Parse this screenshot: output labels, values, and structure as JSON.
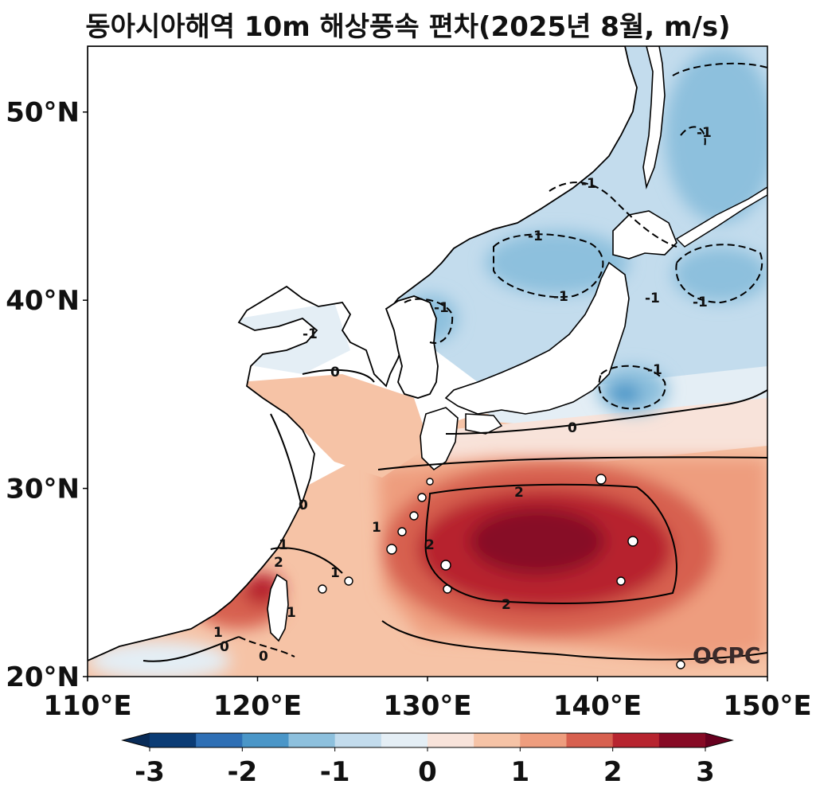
{
  "title": "동아시아해역 10m 해상풍속 편차(2025년 8월, m/s)",
  "watermark": "OCPC",
  "map": {
    "lon_range": [
      110,
      150
    ],
    "lat_range": [
      20,
      53.5
    ],
    "lon_ticks": [
      "110°E",
      "120°E",
      "130°E",
      "140°E",
      "150°E"
    ],
    "lat_ticks": [
      "20°N",
      "30°N",
      "40°N",
      "50°N"
    ],
    "contour_labels": [
      {
        "text": "0"
      },
      {
        "text": "0"
      },
      {
        "text": "0"
      },
      {
        "text": "0"
      },
      {
        "text": "1"
      },
      {
        "text": "1"
      },
      {
        "text": "1"
      },
      {
        "text": "1"
      },
      {
        "text": "2"
      },
      {
        "text": "2"
      },
      {
        "text": "2"
      },
      {
        "text": "2"
      },
      {
        "text": "-1"
      },
      {
        "text": "-1"
      },
      {
        "text": "-1"
      },
      {
        "text": "-1"
      },
      {
        "text": "-1"
      },
      {
        "text": "-1"
      },
      {
        "text": "-1"
      },
      {
        "text": "-1"
      },
      {
        "text": "0"
      },
      {
        "text": "1"
      },
      {
        "text": "-1"
      }
    ]
  },
  "colorbar": {
    "ticks": [
      "-3",
      "-2",
      "-1",
      "0",
      "1",
      "2",
      "3"
    ],
    "levels": [
      -3,
      -2.5,
      -2,
      -1.5,
      -1,
      -0.5,
      0,
      0.5,
      1,
      1.5,
      2,
      2.5,
      3
    ],
    "colors": [
      "#0b3c75",
      "#2e6fb5",
      "#4a96c8",
      "#8dc0dd",
      "#c3dced",
      "#e4eef5",
      "#f8e3da",
      "#f6c3a6",
      "#ee9d7e",
      "#d7604f",
      "#b7242f",
      "#870a25"
    ],
    "under_color": "#082b57",
    "over_color": "#67001f"
  },
  "colors": {
    "land": "#ffffff",
    "coast": "#000000"
  }
}
